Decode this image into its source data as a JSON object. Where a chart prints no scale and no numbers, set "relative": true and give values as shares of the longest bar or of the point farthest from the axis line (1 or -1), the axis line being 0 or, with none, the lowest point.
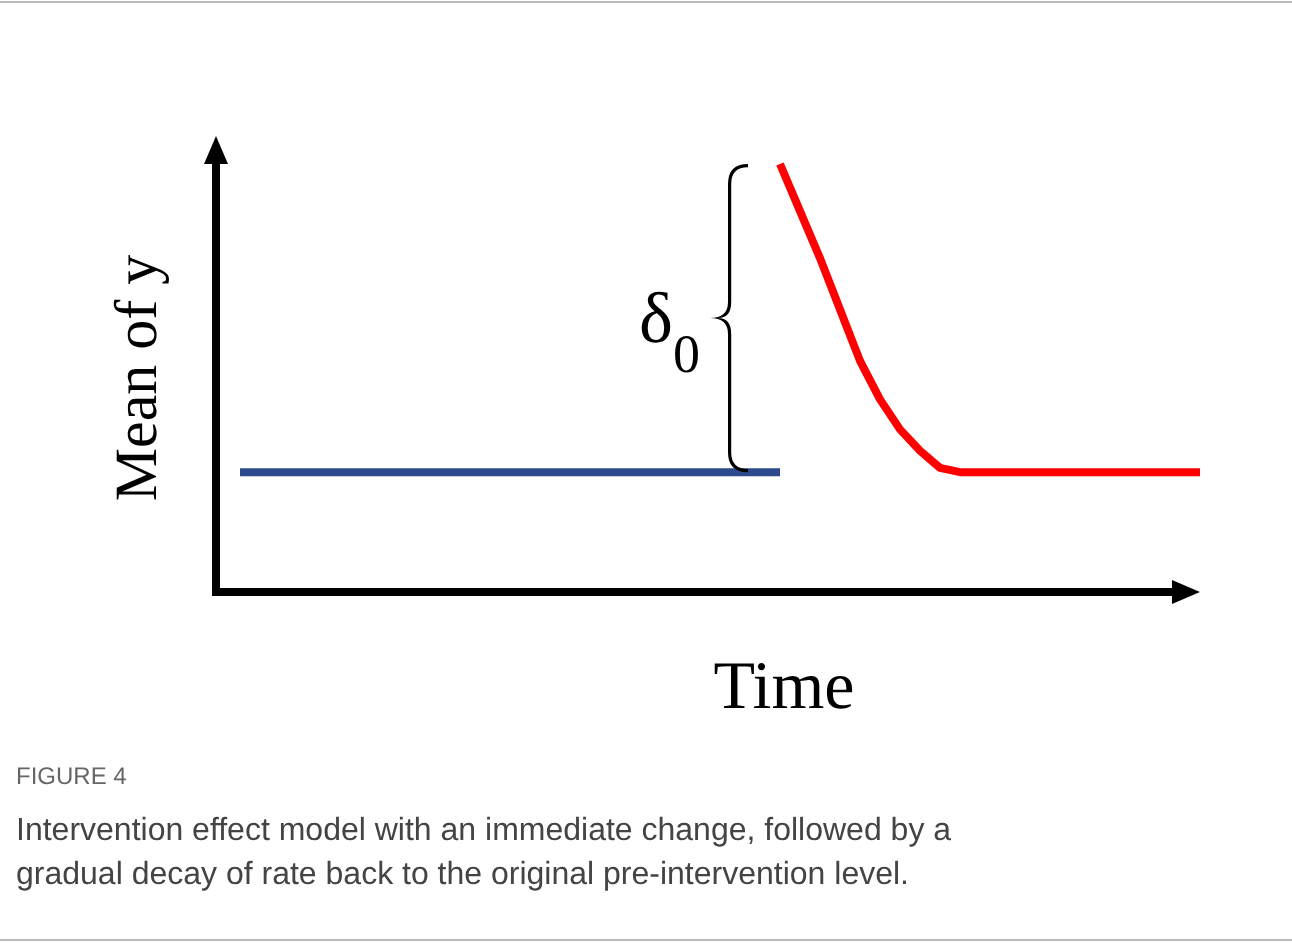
{
  "chart_data": {
    "type": "line",
    "relative": true,
    "xlabel": "Time",
    "ylabel": "Mean of y",
    "categories": [
      null,
      null,
      null,
      null,
      null,
      null,
      null,
      null,
      null,
      null,
      null,
      null,
      null,
      null,
      null,
      null,
      null,
      null,
      null,
      null,
      null,
      null,
      null,
      null,
      null,
      null,
      null,
      null,
      null,
      null,
      null,
      null,
      null,
      null,
      null,
      null,
      null,
      null,
      null,
      null,
      null,
      null,
      null,
      null,
      null,
      null,
      null,
      null,
      null
    ],
    "series": [
      {
        "color": "#2e4a8e",
        "values": [
          0.28,
          0.28,
          0.28,
          0.28,
          0.28,
          0.28,
          0.28,
          0.28,
          0.28,
          0.28,
          0.28,
          0.28,
          0.28,
          0.28,
          0.28,
          0.28,
          0.28,
          0.28,
          0.28,
          0.28,
          0.28,
          0.28,
          0.28,
          0.28,
          0.28,
          0.28,
          0.28,
          0.28,
          null,
          null,
          null,
          null,
          null,
          null,
          null,
          null,
          null,
          null,
          null,
          null,
          null,
          null,
          null,
          null,
          null,
          null,
          null,
          null,
          null
        ]
      },
      {
        "color": "#ff0000",
        "values": [
          null,
          null,
          null,
          null,
          null,
          null,
          null,
          null,
          null,
          null,
          null,
          null,
          null,
          null,
          null,
          null,
          null,
          null,
          null,
          null,
          null,
          null,
          null,
          null,
          null,
          null,
          null,
          1,
          0.89,
          0.78,
          0.66,
          0.54,
          0.45,
          0.38,
          0.33,
          0.29,
          0.28,
          0.28,
          0.28,
          0.28,
          0.28,
          0.28,
          0.28,
          0.28,
          0.28,
          0.28,
          0.28,
          0.28,
          0.28
        ]
      }
    ],
    "annotations": [
      "δ$_{0}$",
      "FIGURE 4",
      "Intervention effect model with an immediate change, followed by a gradual decay of rate back to the original pre-intervention level."
    ]
  }
}
